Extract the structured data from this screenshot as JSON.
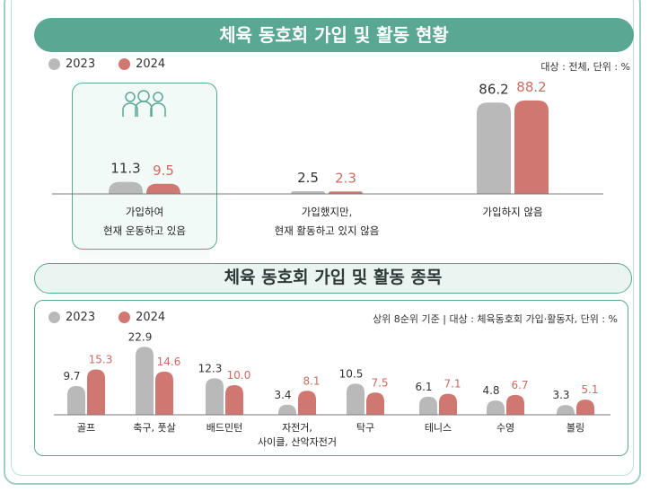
{
  "colors": {
    "y2023": "#b9b9b9",
    "y2024": "#cf7770",
    "accent": "#5aa894",
    "label2023": "#333333",
    "label2024": "#cf6a62"
  },
  "icons": {
    "people": "people-group-icon"
  },
  "top": {
    "title": "체육 동호회 가입 및 활동 현황",
    "legend": [
      "2023",
      "2024"
    ],
    "note": "대상 : 전체, 단위 : %"
  },
  "bottom": {
    "title": "체육 동호회 가입 및 활동 종목",
    "legend": [
      "2023",
      "2024"
    ],
    "note": "상위 8순위 기준 | 대상 : 체육동호회 가입·활동자, 단위 : %"
  },
  "chart_data": [
    {
      "type": "bar",
      "title": "체육 동호회 가입 및 활동 현황",
      "categories": [
        [
          "가입하여",
          "현재 운동하고 있음"
        ],
        [
          "가입했지만,",
          "현재 활동하고 있지 않음"
        ],
        [
          "가입하지 않음"
        ]
      ],
      "series": [
        {
          "name": "2023",
          "values": [
            11.3,
            2.5,
            86.2
          ]
        },
        {
          "name": "2024",
          "values": [
            9.5,
            2.3,
            88.2
          ]
        }
      ],
      "highlight_category_index": 0,
      "legend_position": "top-left"
    },
    {
      "type": "bar",
      "title": "체육 동호회 가입 및 활동 종목",
      "categories": [
        [
          "골프"
        ],
        [
          "축구, 풋살"
        ],
        [
          "배드민턴"
        ],
        [
          "자전거,",
          "사이클, 산악자전거"
        ],
        [
          "탁구"
        ],
        [
          "테니스"
        ],
        [
          "수영"
        ],
        [
          "볼링"
        ]
      ],
      "series": [
        {
          "name": "2023",
          "values": [
            9.7,
            22.9,
            12.3,
            3.4,
            10.5,
            6.1,
            4.8,
            3.3
          ]
        },
        {
          "name": "2024",
          "values": [
            15.3,
            14.6,
            10.0,
            8.1,
            7.5,
            7.1,
            6.7,
            5.1
          ]
        }
      ],
      "legend_position": "top-left"
    }
  ]
}
